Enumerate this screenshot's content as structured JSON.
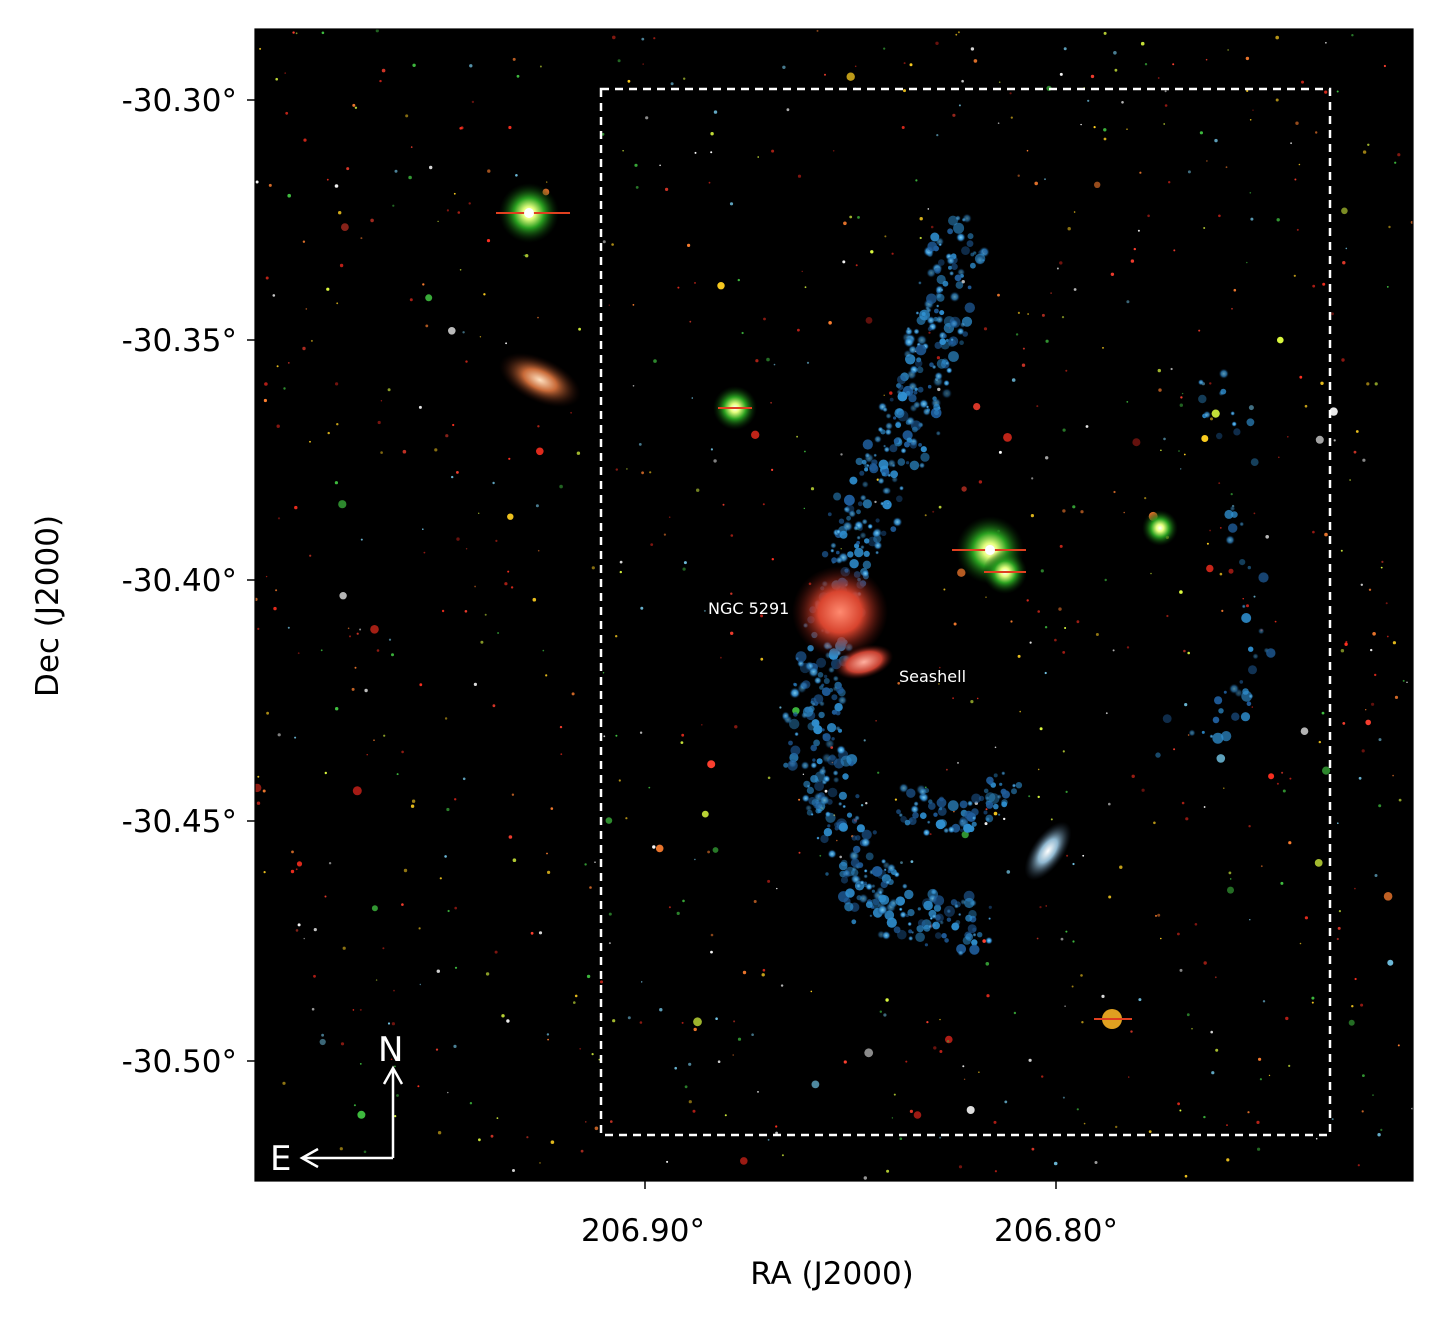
{
  "figure": {
    "x_axis": {
      "label": "RA (J2000)",
      "ticks": [
        "206.90°",
        "206.80°"
      ]
    },
    "y_axis": {
      "label": "Dec (J2000)",
      "ticks": [
        "-30.30°",
        "-30.35°",
        "-30.40°",
        "-30.45°",
        "-30.50°"
      ]
    },
    "annotations": {
      "galaxy_1": "NGC 5291",
      "galaxy_2": "Seashell"
    },
    "compass": {
      "north": "N",
      "east": "E"
    },
    "colors": {
      "background": "#000000",
      "tidal_filament": "#3aa0d8",
      "ngc5291": "#e0503a",
      "footprint_box": "#ffffff"
    }
  }
}
